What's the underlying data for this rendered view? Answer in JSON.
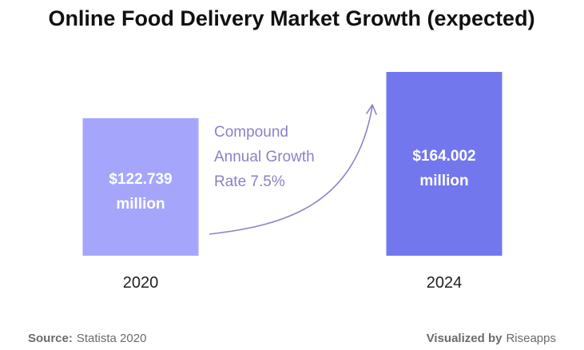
{
  "colors": {
    "bar_2020": "#a5a6fb",
    "bar_2024": "#7277ee",
    "arrow": "#8a83c7",
    "annotation": "#8a82c6"
  },
  "chart_data": {
    "type": "bar",
    "title": "Online Food Delivery Market Growth (expected)",
    "categories": [
      "2020",
      "2024"
    ],
    "values": [
      122.739,
      164.002
    ],
    "data_labels": [
      [
        "$122.739",
        "million"
      ],
      [
        "$164.002",
        "million"
      ]
    ],
    "annotation": [
      "Compound",
      "Annual Growth",
      "Rate 7.5%"
    ],
    "ylim": [
      0,
      164.002
    ],
    "grid": false
  },
  "footer": {
    "source_label": "Source:",
    "source_value": "Statista 2020",
    "visualized_label": "Visualized by",
    "visualized_value": "Riseapps"
  }
}
